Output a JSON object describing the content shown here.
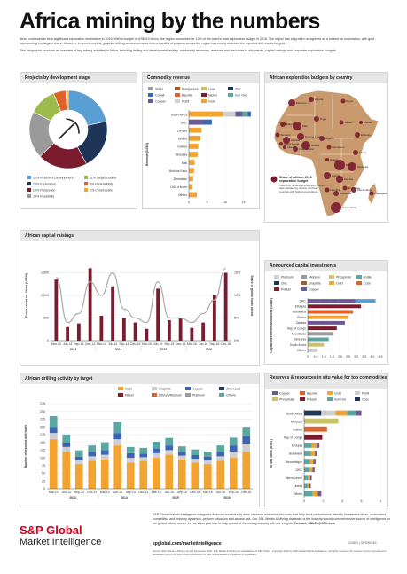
{
  "title": "Africa mining by the numbers",
  "intro": [
    "Africa continued to be a significant exploration destination in 2016. With a budget of US$919 billion, the region accounted for 13% of the world's total exploration budget in 2016. The region has long been recognized as a hotbed for exploration, with gold representing the largest share. However, in recent months, graphite drilling announcements from a handful of projects across the region has nearly matched the reported drill results for gold.",
    "This infographic provides an overview of key mining activities in Africa, including drilling and development activity, commodity revenues, reserves and resources in situ values, capital raisings and corporate exploration budgets."
  ],
  "colors": {
    "maroon": "#7a1c2e",
    "gold": "#f2a330",
    "navy": "#1f3557",
    "blue": "#3c64b4",
    "grey": "#9a9a9a",
    "lightgrey": "#cfcfcf",
    "orange": "#e0622a",
    "brown": "#a35a2c",
    "teal": "#5aa6a0",
    "green": "#9dbb4a",
    "purple": "#6b5a94",
    "yellowgreen": "#c9c36a"
  },
  "panels": {
    "projects": {
      "title": "Projects by development stage"
    },
    "revenue": {
      "title": "Commodity revenue"
    },
    "map": {
      "title": "African exploration budgets by country"
    },
    "capital": {
      "title": "African capital raisings"
    },
    "announced": {
      "title": "Announced capital investments"
    },
    "drilling": {
      "title": "African drilling activity by target"
    },
    "reserves": {
      "title": "Reserves & resources in situ value for top commodities"
    }
  },
  "chart_data": [
    {
      "id": "projects",
      "type": "pie",
      "title": "Projects by development stage",
      "slices": [
        {
          "label": "21% Reserves Development",
          "value": 21,
          "color": "#5a9fd4"
        },
        {
          "label": "20% Exploration",
          "value": 20,
          "color": "#1f3557"
        },
        {
          "label": "20% Production",
          "value": 20,
          "color": "#7a1c2e"
        },
        {
          "label": "19% Feasibility",
          "value": 19,
          "color": "#9a9a9a"
        },
        {
          "label": "11% Target Outline",
          "value": 11,
          "color": "#9dbb4a"
        },
        {
          "label": "5% Prefeasibility",
          "value": 5,
          "color": "#e0622a"
        },
        {
          "label": "1% Construction",
          "value": 1,
          "color": "#f2a330"
        }
      ]
    },
    {
      "id": "revenue",
      "type": "bar",
      "title": "Commodity revenue",
      "ylabel": "Revenue (US$B)",
      "legend": [
        {
          "name": "Silver",
          "color": "#9a9a9a"
        },
        {
          "name": "Manganese",
          "color": "#a35a2c"
        },
        {
          "name": "Lead",
          "color": "#c9c36a"
        },
        {
          "name": "Zinc",
          "color": "#1f3557"
        },
        {
          "name": "Cobalt",
          "color": "#3c64b4"
        },
        {
          "name": "Bauxite",
          "color": "#e0622a"
        },
        {
          "name": "Nickel",
          "color": "#7a1c2e"
        },
        {
          "name": "Iron Ore",
          "color": "#5aa6a0"
        },
        {
          "name": "Copper",
          "color": "#6b5a94"
        },
        {
          "name": "PGM",
          "color": "#cfcfcf"
        },
        {
          "name": "Gold",
          "color": "#f2a330"
        }
      ],
      "categories": [
        "South Africa",
        "DRC",
        "Zambia",
        "Ghana",
        "Guinea",
        "Tanzania",
        "Mali",
        "Burkina Faso",
        "Zimbabwe",
        "Cote d'Ivoire",
        "Others"
      ],
      "values": [
        17.0,
        6.3,
        3.5,
        3.2,
        2.6,
        2.4,
        1.6,
        1.4,
        1.2,
        0.9,
        2.2
      ],
      "xticks": [
        "0",
        "5",
        "10",
        "15"
      ],
      "xlim": [
        0,
        18
      ]
    },
    {
      "id": "capital",
      "type": "bar",
      "title": "African capital raisings",
      "ylabel": "Funds raised for Africa (US$M)",
      "y2label": "Share of global funds raised",
      "categories": [
        "Mar-13",
        "Jun-13",
        "Sep-13",
        "Dec-13",
        "Mar-14",
        "Jun-14",
        "Sep-14",
        "Dec-14",
        "Mar-15",
        "Jun-15",
        "Sep-15",
        "Dec-15",
        "Mar-16",
        "Jun-16",
        "Sep-16",
        "Dec-16"
      ],
      "values": [
        1350,
        300,
        380,
        1600,
        550,
        1200,
        500,
        400,
        260,
        1150,
        450,
        500,
        280,
        400,
        1000,
        1500
      ],
      "share_pct": [
        14,
        4,
        6,
        13,
        10,
        15,
        7,
        5,
        4,
        13,
        5,
        5,
        4,
        6,
        9,
        16
      ],
      "yticks": [
        "0",
        "500",
        "1,000",
        "1,500"
      ],
      "ylim": [
        0,
        2000
      ],
      "y2ticks": [
        "0%",
        "5%",
        "10%",
        "15%"
      ],
      "years": [
        "2013",
        "2014",
        "2015",
        "2016"
      ]
    },
    {
      "id": "announced",
      "type": "bar",
      "title": "Announced capital investments",
      "ylabel": "Capital investment announced (US$B)",
      "legend": [
        {
          "name": "Platinum",
          "color": "#cfcfcf"
        },
        {
          "name": "Niobium",
          "color": "#9a9a9a"
        },
        {
          "name": "Phosphate",
          "color": "#c9c36a"
        },
        {
          "name": "Rutile",
          "color": "#5aa6a0"
        },
        {
          "name": "Zinc",
          "color": "#1f3557"
        },
        {
          "name": "Graphite",
          "color": "#a35a2c"
        },
        {
          "name": "Gold",
          "color": "#f2a330"
        },
        {
          "name": "Coal",
          "color": "#e0622a"
        },
        {
          "name": "Potash",
          "color": "#7a1c2e"
        },
        {
          "name": "Copper",
          "color": "#6b5a94"
        }
      ],
      "categories": [
        "DRC",
        "Ethiopia",
        "Botswana",
        "Ghana",
        "Zambia",
        "Rep of Congo",
        "Mauritania",
        "Tanzania",
        "South Africa",
        "Others"
      ],
      "values": [
        4.2,
        3.3,
        2.8,
        2.5,
        2.3,
        1.8,
        1.6,
        1.3,
        1.0,
        0.6
      ],
      "xticks": [
        "0",
        "0.5",
        "1.0",
        "1.5",
        "2.0",
        "2.5",
        "3.0",
        "3.5",
        "4.0",
        "4.5"
      ],
      "xlim": [
        0,
        4.5
      ]
    },
    {
      "id": "drilling",
      "type": "bar",
      "title": "African drilling activity by target",
      "ylabel": "Number of reported drill holes",
      "legend": [
        {
          "name": "Gold",
          "color": "#f2a330"
        },
        {
          "name": "Graphite",
          "color": "#cfcfcf"
        },
        {
          "name": "Copper",
          "color": "#3c64b4"
        },
        {
          "name": "Zinc-Lead",
          "color": "#1f3557"
        },
        {
          "name": "Nickel",
          "color": "#7a1c2e"
        },
        {
          "name": "Lithium/Niobium",
          "color": "#e0622a"
        },
        {
          "name": "Platinum",
          "color": "#9a9a9a"
        },
        {
          "name": "Others",
          "color": "#5aa6a0"
        }
      ],
      "categories": [
        "Mar-13",
        "Jun-13",
        "Sep-13",
        "Dec-13",
        "Mar-14",
        "Jun-14",
        "Sep-14",
        "Dec-14",
        "Mar-15",
        "Jun-15",
        "Sep-15",
        "Dec-15",
        "Mar-16",
        "Jun-16",
        "Sep-16",
        "Dec-16"
      ],
      "series": [
        {
          "name": "Gold",
          "values": [
            160,
            120,
            80,
            90,
            95,
            140,
            85,
            90,
            100,
            110,
            95,
            85,
            80,
            90,
            100,
            120
          ]
        },
        {
          "name": "Graphite",
          "values": [
            20,
            15,
            12,
            15,
            15,
            20,
            15,
            12,
            15,
            15,
            12,
            12,
            12,
            15,
            20,
            25
          ]
        },
        {
          "name": "Copper",
          "values": [
            20,
            15,
            12,
            15,
            15,
            20,
            15,
            12,
            15,
            15,
            12,
            12,
            12,
            15,
            20,
            25
          ]
        },
        {
          "name": "Others",
          "values": [
            35,
            25,
            20,
            20,
            25,
            35,
            20,
            18,
            22,
            24,
            18,
            18,
            16,
            20,
            25,
            30
          ]
        }
      ],
      "yticks": [
        "0",
        "25",
        "50",
        "75",
        "100",
        "125",
        "150",
        "175",
        "200",
        "225",
        "250",
        "275"
      ],
      "ylim": [
        0,
        275
      ],
      "years": [
        "2013",
        "2014",
        "2015",
        "2016"
      ]
    },
    {
      "id": "reserves",
      "type": "bar",
      "title": "Reserves & resources in situ value for top commodities",
      "ylabel": "In situ value (US$T)",
      "legend": [
        {
          "name": "Copper",
          "color": "#6b5a94"
        },
        {
          "name": "Bauxite",
          "color": "#e0622a"
        },
        {
          "name": "Gold",
          "color": "#f2a330"
        },
        {
          "name": "PGM",
          "color": "#cfcfcf"
        },
        {
          "name": "Phosphate",
          "color": "#c9c36a"
        },
        {
          "name": "Potash",
          "color": "#7a1c2e"
        },
        {
          "name": "Iron Ore",
          "color": "#5aa6a0"
        },
        {
          "name": "Coal",
          "color": "#1f3557"
        }
      ],
      "categories": [
        "South Africa",
        "Morocco",
        "Guinea",
        "Rep of Congo",
        "Ethiopia",
        "Botswana",
        "Mozambique",
        "DRC",
        "Sierra Leone",
        "Liberia",
        "Others"
      ],
      "values": [
        6.0,
        3.6,
        2.4,
        1.9,
        1.6,
        1.4,
        1.2,
        1.1,
        0.8,
        0.7,
        1.8
      ],
      "xticks": [
        "0",
        "2",
        "4",
        "6",
        "8"
      ],
      "xlim": [
        0,
        8
      ]
    }
  ],
  "map": {
    "note": "Share of African 2016 exploration budget",
    "note_detail": "Area circle of the total exploration budget data indicated by number of African countries with highest expenditures.",
    "countries": [
      "Morocco",
      "Algeria",
      "Mauritania",
      "Mali",
      "Niger",
      "Senegal",
      "Guinea",
      "Burkina Faso",
      "Ghana",
      "Cote d'Ivoire",
      "Liberia",
      "Sierra Leone",
      "Nigeria",
      "Cameroon",
      "Gabon",
      "DRC",
      "Ethiopia",
      "Kenya",
      "Tanzania",
      "Zambia",
      "Angola",
      "Namibia",
      "Botswana",
      "South Africa",
      "Mozambique",
      "Madagascar",
      "Zimbabwe",
      "Sudan",
      "Egypt",
      "Eritrea"
    ]
  },
  "footer": {
    "description": "S&P Global Market Intelligence integrates financial and industry data, research and news into tools that help track performance, identify investment ideas, understand competitive and industry dynamics, perform valuation and assess risk. Our SNL Metals & Mining database is the industry's most comprehensive source of intelligence on the global mining sector. Let us show you how to stay ahead of the mining industry with our insights.",
    "contact": "Contact: SNLEx@SNL.com",
    "brand1": "S&P Global",
    "brand2": "Market Intelligence",
    "site": "spglobal.com/marketintelligence",
    "source": "Source: SNL Metals & Mining, as of 1 December 2016. SNL Metals & Mining are subsidiaries of S&P Global. Copyright 2016 by S&P Global Market Intelligence. All rights reserved. No content may be reproduced or distributed without the prior written permission of S&P Global Market Intelligence or its affiliates.",
    "code": "121801 | SPG89349"
  }
}
